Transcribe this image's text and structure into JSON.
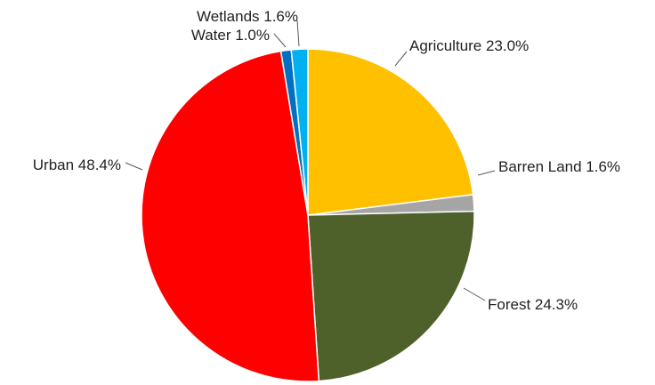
{
  "chart_data": {
    "type": "pie",
    "title": "",
    "slices": [
      {
        "label": "Agriculture",
        "value": 23.0,
        "display": "Agriculture 23.0%",
        "color": "#FFC000"
      },
      {
        "label": "Barren Land",
        "value": 1.6,
        "display": "Barren Land 1.6%",
        "color": "#A5A5A5"
      },
      {
        "label": "Forest",
        "value": 24.3,
        "display": "Forest 24.3%",
        "color": "#4F612A"
      },
      {
        "label": "Urban",
        "value": 48.4,
        "display": "Urban 48.4%",
        "color": "#FF0000"
      },
      {
        "label": "Water",
        "value": 1.0,
        "display": "Water 1.0%",
        "color": "#0070C0"
      },
      {
        "label": "Wetlands",
        "value": 1.6,
        "display": "Wetlands 1.6%",
        "color": "#00B0F0"
      }
    ],
    "start_angle_deg": 0,
    "direction": "clockwise",
    "legend": "none",
    "label_placement": "outside with leader lines"
  }
}
